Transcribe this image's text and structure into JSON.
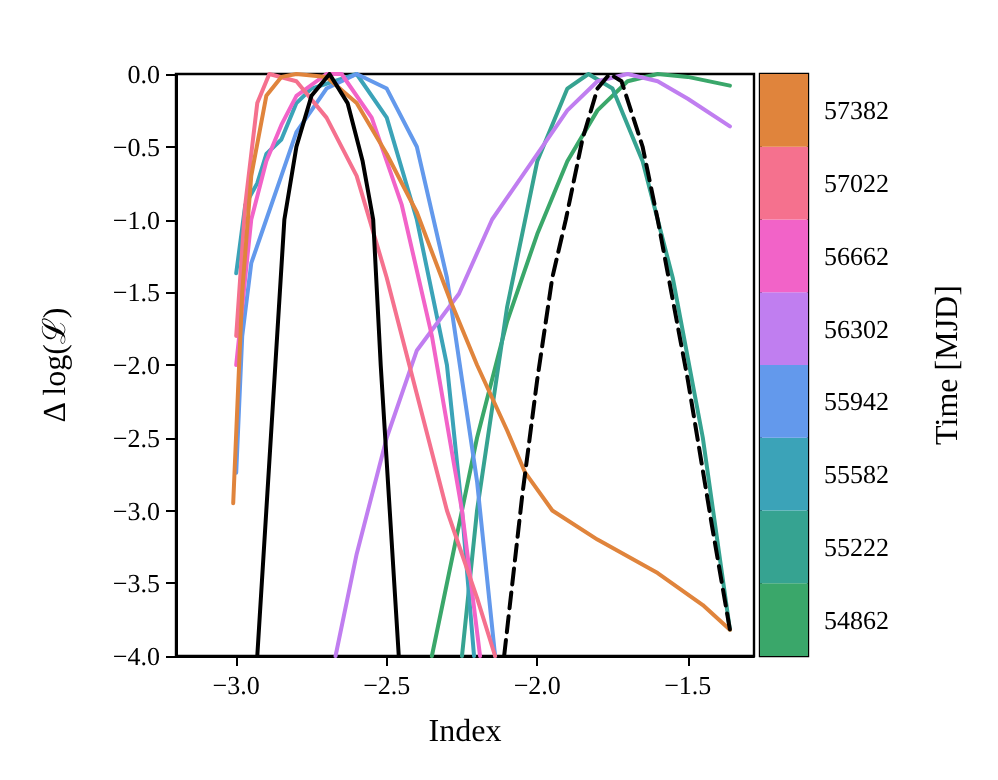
{
  "chart_data": {
    "type": "line",
    "xlabel": "Index",
    "ylabel": "Δ log(ℒ)",
    "clabel": "Time [MJD]",
    "xlim": [
      -3.2,
      -1.28
    ],
    "ylim": [
      -4,
      0
    ],
    "xticks": [
      {
        "value": -3,
        "label": "−3.0"
      },
      {
        "value": -2.5,
        "label": "−2.5"
      },
      {
        "value": -2,
        "label": "−2.0"
      },
      {
        "value": -1.5,
        "label": "−1.5"
      }
    ],
    "yticks": [
      {
        "value": -4,
        "label": "−4.0"
      },
      {
        "value": -3.5,
        "label": "−3.5"
      },
      {
        "value": -3,
        "label": "−3.0"
      },
      {
        "value": -2.5,
        "label": "−2.5"
      },
      {
        "value": -2,
        "label": "−2.0"
      },
      {
        "value": -1.5,
        "label": "−1.5"
      },
      {
        "value": -1,
        "label": "−1.0"
      },
      {
        "value": -0.5,
        "label": "−0.5"
      },
      {
        "value": 0,
        "label": "0.0"
      }
    ],
    "clim": [
      54682,
      57562
    ],
    "cticks": [
      54862,
      55222,
      55582,
      55942,
      56302,
      56662,
      57022,
      57382
    ],
    "grid": false,
    "marker": "none",
    "series": [
      {
        "color": "#3aa76a",
        "x": [
          -2.35,
          -2.3,
          -2.2,
          -2.1,
          -2.0,
          -1.9,
          -1.8,
          -1.7,
          -1.6,
          -1.5,
          -1.36
        ],
        "values": [
          -4,
          -3.5,
          -2.5,
          -1.7,
          -1.1,
          -0.6,
          -0.25,
          -0.05,
          0,
          -0.02,
          -0.08
        ]
      },
      {
        "color": "#36a391",
        "x": [
          -2.25,
          -2.2,
          -2.1,
          -2.0,
          -1.9,
          -1.83,
          -1.75,
          -1.65,
          -1.55,
          -1.45,
          -1.36
        ],
        "values": [
          -4,
          -3.0,
          -1.6,
          -0.6,
          -0.1,
          0,
          -0.1,
          -0.6,
          -1.4,
          -2.5,
          -3.82
        ]
      },
      {
        "color": "#3ba3b8",
        "x": [
          -3.0,
          -2.97,
          -2.93,
          -2.9,
          -2.85,
          -2.8,
          -2.75,
          -2.6,
          -2.5,
          -2.4,
          -2.3,
          -2.25,
          -2.21
        ],
        "values": [
          -1.37,
          -0.9,
          -0.75,
          -0.55,
          -0.45,
          -0.2,
          -0.1,
          0,
          -0.3,
          -1.0,
          -2.0,
          -3.0,
          -4
        ]
      },
      {
        "color": "#6399ec",
        "x": [
          -3.0,
          -2.98,
          -2.95,
          -2.9,
          -2.85,
          -2.8,
          -2.7,
          -2.6,
          -2.5,
          -2.4,
          -2.3,
          -2.2,
          -2.14
        ],
        "values": [
          -2.74,
          -1.8,
          -1.3,
          -1.0,
          -0.7,
          -0.4,
          -0.1,
          0,
          -0.1,
          -0.5,
          -1.4,
          -2.8,
          -4
        ]
      },
      {
        "color": "#c07ef0",
        "x": [
          -2.67,
          -2.6,
          -2.5,
          -2.4,
          -2.26,
          -2.15,
          -2.0,
          -1.9,
          -1.8,
          -1.7,
          -1.6,
          -1.5,
          -1.36
        ],
        "values": [
          -4,
          -3.3,
          -2.5,
          -1.9,
          -1.51,
          -1.0,
          -0.55,
          -0.25,
          -0.05,
          0,
          -0.05,
          -0.17,
          -0.36
        ]
      },
      {
        "color": "#f263c8",
        "x": [
          -3.0,
          -2.95,
          -2.9,
          -2.85,
          -2.8,
          -2.7,
          -2.65,
          -2.55,
          -2.45,
          -2.35,
          -2.25,
          -2.19
        ],
        "values": [
          -2.0,
          -1.0,
          -0.6,
          -0.35,
          -0.15,
          0,
          0,
          -0.3,
          -0.9,
          -1.8,
          -3.0,
          -4
        ]
      },
      {
        "color": "#f5718e",
        "x": [
          -3.0,
          -2.97,
          -2.93,
          -2.89,
          -2.8,
          -2.7,
          -2.6,
          -2.5,
          -2.4,
          -2.3,
          -2.2,
          -2.14
        ],
        "values": [
          -1.8,
          -0.9,
          -0.2,
          0,
          -0.05,
          -0.3,
          -0.7,
          -1.4,
          -2.2,
          -3.0,
          -3.6,
          -4
        ]
      },
      {
        "color": "#e0843c",
        "x": [
          -3.01,
          -2.98,
          -2.95,
          -2.9,
          -2.85,
          -2.8,
          -2.7,
          -2.6,
          -2.5,
          -2.4,
          -2.29,
          -2.2,
          -2.1,
          -2.04,
          -1.95,
          -1.8,
          -1.6,
          -1.45,
          -1.36
        ],
        "values": [
          -2.95,
          -1.5,
          -0.7,
          -0.15,
          -0.02,
          0,
          -0.02,
          -0.2,
          -0.55,
          -0.95,
          -1.55,
          -2.0,
          -2.45,
          -2.74,
          -3.0,
          -3.2,
          -3.43,
          -3.65,
          -3.82
        ]
      },
      {
        "color": "#000000",
        "x": [
          -2.93,
          -2.9,
          -2.87,
          -2.84,
          -2.8,
          -2.75,
          -2.69,
          -2.63,
          -2.58,
          -2.545,
          -2.52,
          -2.49,
          -2.46
        ],
        "values": [
          -4,
          -3,
          -2,
          -1,
          -0.5,
          -0.15,
          0,
          -0.2,
          -0.6,
          -1,
          -2,
          -3,
          -4
        ]
      },
      {
        "color": "#000000",
        "line_style": "dashed",
        "x": [
          -2.11,
          -2.05,
          -2.0,
          -1.95,
          -1.905,
          -1.85,
          -1.8,
          -1.76,
          -1.72,
          -1.65,
          -1.6,
          -1.5,
          -1.42,
          -1.36
        ],
        "values": [
          -4,
          -2.9,
          -2.1,
          -1.4,
          -1,
          -0.45,
          -0.1,
          0,
          -0.05,
          -0.5,
          -1,
          -2.1,
          -3.1,
          -3.82
        ]
      }
    ]
  }
}
